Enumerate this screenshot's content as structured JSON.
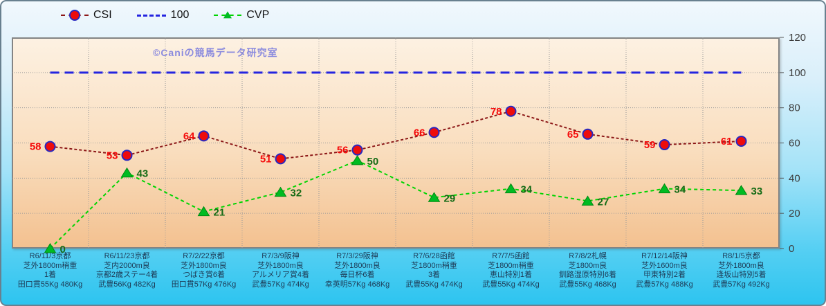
{
  "watermark": "©Caniの競馬データ研究室",
  "colors": {
    "csi_line": "#8c1717",
    "csi_marker_fill": "#ee0c0c",
    "csi_marker_stroke": "#2828c0",
    "csi_label": "#f50a0a",
    "ref_line": "#2424e0",
    "cvp_line": "#00d400",
    "cvp_marker_fill": "#00bb22",
    "cvp_marker_stroke": "#008811",
    "cvp_label": "#156b15",
    "watermark": "#8a8ade",
    "grid": "#9a9a9a",
    "ytick_text": "#3c3c3c",
    "xlabel_text": "#1d3a55",
    "plot_bg_top": "#fdf1e2",
    "plot_bg_bottom": "#f3c190"
  },
  "chart_data": {
    "type": "line",
    "title": "",
    "ylim": [
      0,
      120
    ],
    "yticks": [
      0,
      20,
      40,
      60,
      80,
      100,
      120
    ],
    "grid": true,
    "legend_position": "top",
    "categories": [
      [
        "R6/11/3京都",
        "芝外1800m稍重",
        "1着",
        "田口貫55Kg 480Kg"
      ],
      [
        "R6/11/23京都",
        "芝内2000m良",
        "京都2歳ステー4着",
        "武豊56Kg 482Kg"
      ],
      [
        "R7/2/22京都",
        "芝外1800m良",
        "つばき賞6着",
        "田口貫57Kg 476Kg"
      ],
      [
        "R7/3/9阪神",
        "芝外1800m良",
        "アルメリア賞4着",
        "武豊57Kg 474Kg"
      ],
      [
        "R7/3/29阪神",
        "芝外1800m良",
        "毎日杯6着",
        "幸英明57Kg 468Kg"
      ],
      [
        "R7/6/28函館",
        "芝1800m稍重",
        "3着",
        "武豊55Kg 474Kg"
      ],
      [
        "R7/7/5函館",
        "芝1800m稍重",
        "恵山特別1着",
        "武豊55Kg 474Kg"
      ],
      [
        "R7/8/2札幌",
        "芝1800m良",
        "釧路湿原特別6着",
        "武豊55Kg 468Kg"
      ],
      [
        "R7/12/14阪神",
        "芝外1600m良",
        "甲東特別2着",
        "武豊57Kg 488Kg"
      ],
      [
        "R8/1/5京都",
        "芝外1800m良",
        "逢坂山特別5着",
        "武豊57Kg 492Kg"
      ]
    ],
    "series": [
      {
        "name": "CSI",
        "type": "line",
        "marker": "circle",
        "label_side": "left",
        "values": [
          58,
          53,
          64,
          51,
          56,
          66,
          78,
          65,
          59,
          61
        ]
      },
      {
        "name": "100",
        "type": "constant-line",
        "constant": 100
      },
      {
        "name": "CVP",
        "type": "line",
        "marker": "triangle",
        "label_side": "right",
        "values": [
          0,
          43,
          21,
          32,
          50,
          29,
          34,
          27,
          34,
          33
        ]
      }
    ]
  }
}
